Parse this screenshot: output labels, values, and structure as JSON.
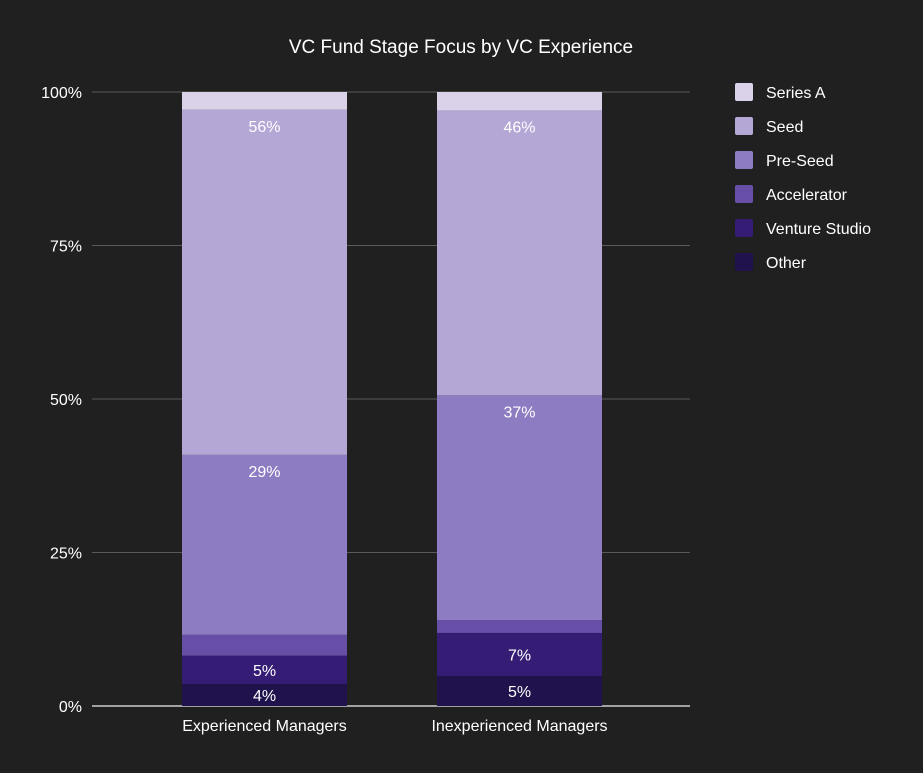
{
  "chart_data": {
    "type": "bar",
    "stacked": true,
    "title": "VC Fund Stage Focus by VC Experience",
    "xlabel": "",
    "ylabel": "",
    "ylim": [
      0,
      100
    ],
    "y_ticks": [
      "0%",
      "25%",
      "50%",
      "75%",
      "100%"
    ],
    "y_tick_values": [
      0,
      25,
      50,
      75,
      100
    ],
    "grid": true,
    "legend_position": "right",
    "categories": [
      "Experienced Managers",
      "Inexperienced Managers"
    ],
    "series": [
      {
        "name": "Other",
        "color": "#20124d",
        "values": [
          3.6,
          4.9
        ],
        "labels": [
          "4%",
          "5%"
        ]
      },
      {
        "name": "Venture Studio",
        "color": "#351c75",
        "values": [
          4.6,
          7.0
        ],
        "labels": [
          "5%",
          "7%"
        ]
      },
      {
        "name": "Accelerator",
        "color": "#674ea7",
        "values": [
          3.4,
          2.1
        ],
        "labels": [
          "",
          ""
        ]
      },
      {
        "name": "Pre-Seed",
        "color": "#8e7cc3",
        "values": [
          29.3,
          36.6
        ],
        "labels": [
          "29%",
          "37%"
        ]
      },
      {
        "name": "Seed",
        "color": "#b4a7d6",
        "values": [
          56.2,
          46.4
        ],
        "labels": [
          "56%",
          "46%"
        ]
      },
      {
        "name": "Series A",
        "color": "#d9d2e9",
        "values": [
          2.9,
          3.0
        ],
        "labels": [
          "",
          ""
        ]
      }
    ],
    "legend_order": [
      "Series A",
      "Seed",
      "Pre-Seed",
      "Accelerator",
      "Venture Studio",
      "Other"
    ]
  }
}
